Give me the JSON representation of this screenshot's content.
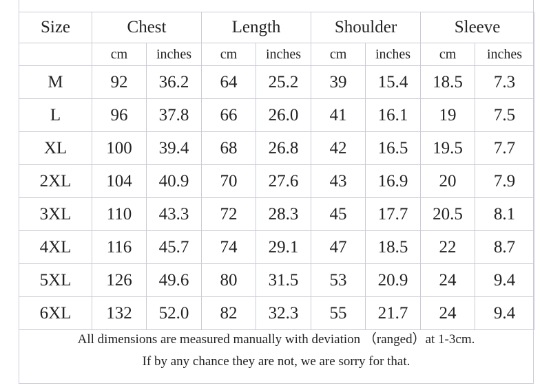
{
  "header": {
    "size": "Size",
    "groups": [
      "Chest",
      "Length",
      "Shoulder",
      "Sleeve"
    ]
  },
  "units": [
    "cm",
    "inches",
    "cm",
    "inches",
    "cm",
    "inches",
    "cm",
    "inches"
  ],
  "rows": [
    {
      "size": "M",
      "values": [
        "92",
        "36.2",
        "64",
        "25.2",
        "39",
        "15.4",
        "18.5",
        "7.3"
      ]
    },
    {
      "size": "L",
      "values": [
        "96",
        "37.8",
        "66",
        "26.0",
        "41",
        "16.1",
        "19",
        "7.5"
      ]
    },
    {
      "size": "XL",
      "values": [
        "100",
        "39.4",
        "68",
        "26.8",
        "42",
        "16.5",
        "19.5",
        "7.7"
      ]
    },
    {
      "size": "2XL",
      "values": [
        "104",
        "40.9",
        "70",
        "27.6",
        "43",
        "16.9",
        "20",
        "7.9"
      ]
    },
    {
      "size": "3XL",
      "values": [
        "110",
        "43.3",
        "72",
        "28.3",
        "45",
        "17.7",
        "20.5",
        "8.1"
      ]
    },
    {
      "size": "4XL",
      "values": [
        "116",
        "45.7",
        "74",
        "29.1",
        "47",
        "18.5",
        "22",
        "8.7"
      ]
    },
    {
      "size": "5XL",
      "values": [
        "126",
        "49.6",
        "80",
        "31.5",
        "53",
        "20.9",
        "24",
        "9.4"
      ]
    },
    {
      "size": "6XL",
      "values": [
        "132",
        "52.0",
        "82",
        "32.3",
        "55",
        "21.7",
        "24",
        "9.4"
      ]
    }
  ],
  "note": {
    "line1": "All dimensions are measured manually with deviation （ranged）at 1-3cm.",
    "line2": "If by any chance they are not, we are sorry for that."
  }
}
